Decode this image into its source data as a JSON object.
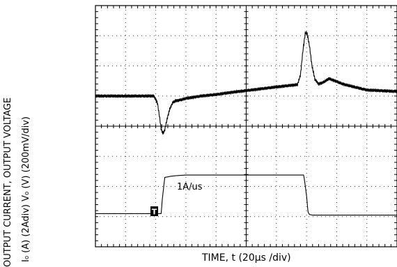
{
  "ylabel_line1": "OUTPUT CURRENT,      OUTPUT VOLTAGE",
  "ylabel_line2": "I₀ (A)  (2Adiv)           V₀ (V) (200mV/div)",
  "xlabel": "TIME, t (20µs /div)",
  "annotation": "1A/us",
  "trigger_marker": "T",
  "chart_data": {
    "type": "line",
    "title": "",
    "xlabel": "TIME, t (20µs /div)",
    "ylabel": "OUTPUT CURRENT, I₀ (A) (2Adiv)   OUTPUT VOLTAGE V₀ (V) (200mV/div)",
    "divisions": {
      "x": 10,
      "y": 8
    },
    "xlim": [
      0,
      10
    ],
    "ylim": [
      0,
      8
    ],
    "grid": true,
    "annotations": [
      "1A/us",
      "T"
    ],
    "series": [
      {
        "x": [
          0,
          1.94,
          2.0,
          2.06,
          2.12,
          2.18,
          2.24,
          2.3,
          2.38,
          2.47,
          2.56,
          2.66,
          2.78,
          3.0,
          3.5,
          4.0,
          4.5,
          5.0,
          5.5,
          6.0,
          6.7,
          6.8,
          6.88,
          6.96,
          7.02,
          7.1,
          7.18,
          7.28,
          7.4,
          7.55,
          7.75,
          7.95,
          8.2,
          8.5,
          9.0,
          10.0
        ],
        "y": [
          5.0,
          5.0,
          4.88,
          4.75,
          4.35,
          3.9,
          3.75,
          3.88,
          4.25,
          4.58,
          4.78,
          4.84,
          4.86,
          4.92,
          5.0,
          5.05,
          5.12,
          5.18,
          5.24,
          5.3,
          5.38,
          5.7,
          6.5,
          7.1,
          7.08,
          6.65,
          6.0,
          5.55,
          5.4,
          5.45,
          5.58,
          5.5,
          5.4,
          5.32,
          5.2,
          5.15
        ]
      },
      {
        "x": [
          0,
          1.98,
          2.0,
          2.18,
          2.22,
          2.3,
          2.5,
          2.7,
          3.0,
          6.9,
          6.92,
          7.0,
          7.05,
          7.1,
          7.2,
          10.0
        ],
        "y": [
          1.1,
          1.1,
          1.1,
          1.1,
          1.6,
          2.3,
          2.34,
          2.36,
          2.38,
          2.38,
          2.3,
          1.7,
          1.15,
          1.07,
          1.05,
          1.05
        ]
      }
    ]
  }
}
